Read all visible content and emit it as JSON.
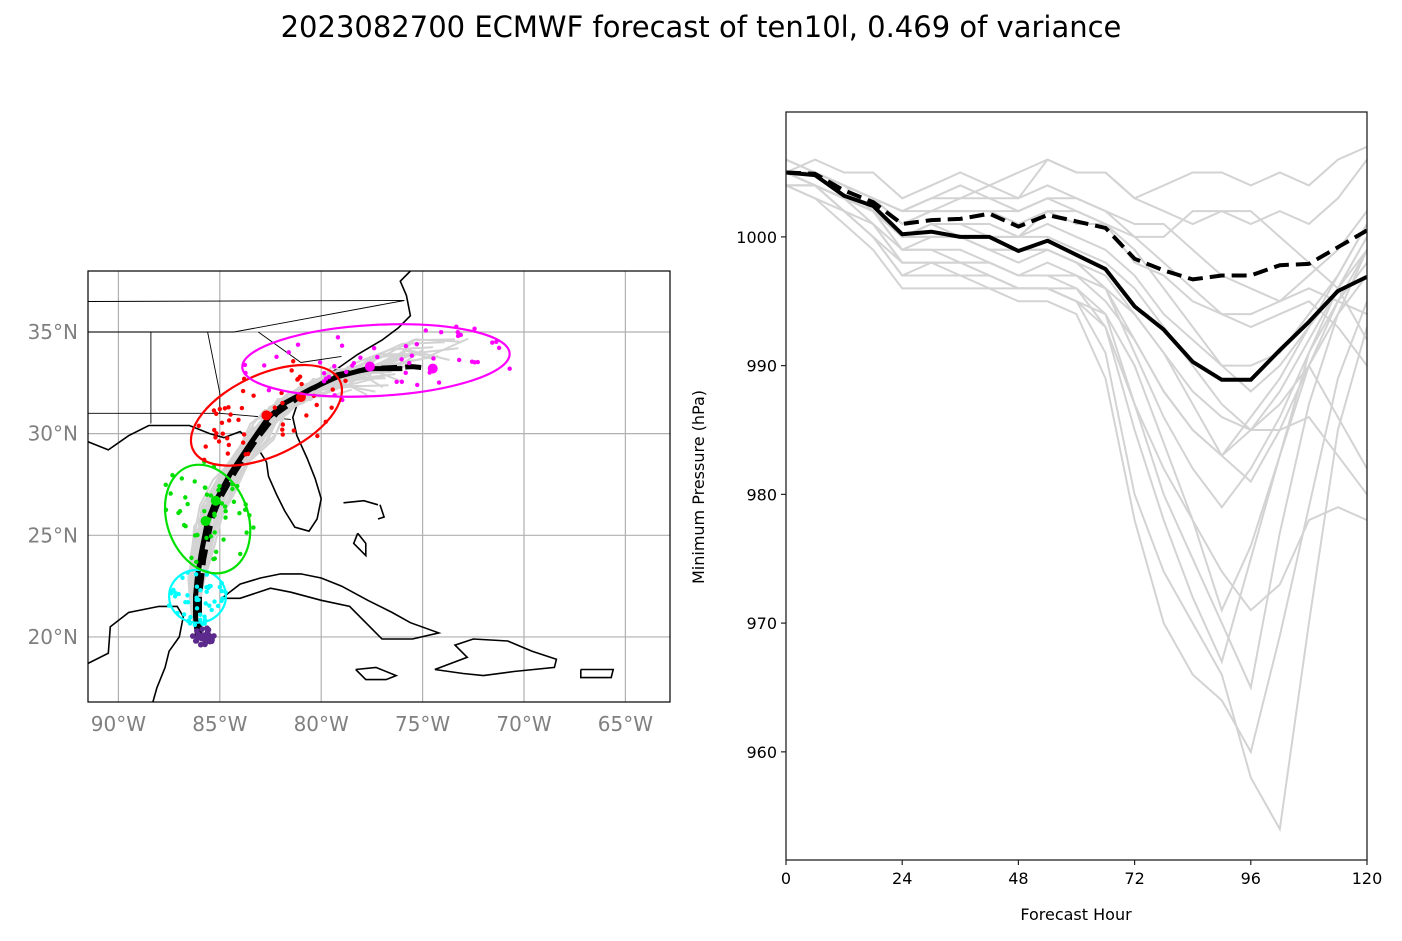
{
  "title": "2023082700 ECMWF forecast of ten10l, 0.469 of variance",
  "chart_data": [
    {
      "type": "scatter",
      "name": "track-map",
      "projection": "PlateCarree",
      "xlim": [
        -91.5,
        -62.8
      ],
      "ylim": [
        16.8,
        38.0
      ],
      "grid": true,
      "x_ticks": [
        -90,
        -85,
        -80,
        -75,
        -70,
        -65
      ],
      "x_tick_labels": [
        "90°W",
        "85°W",
        "80°W",
        "75°W",
        "70°W",
        "65°W"
      ],
      "y_ticks": [
        20,
        25,
        30,
        35
      ],
      "y_tick_labels": [
        "20°N",
        "25°N",
        "30°N",
        "35°N"
      ],
      "colors": {
        "ensemble_track": "#d3d3d3",
        "mean_track": "#000000",
        "t0": "#5b2a8c",
        "t24": "#00ffff",
        "t48": "#00e000",
        "t72": "#ff0000",
        "t96": "#ff00ff",
        "coast": "#000000",
        "grid": "#b0b0b0"
      },
      "mean_track_solid": [
        [
          -86.1,
          20.0
        ],
        [
          -86.2,
          21.0
        ],
        [
          -86.2,
          22.0
        ],
        [
          -86.1,
          23.0
        ],
        [
          -85.9,
          24.2
        ],
        [
          -85.6,
          25.7
        ],
        [
          -85.2,
          26.7
        ],
        [
          -84.5,
          28.0
        ],
        [
          -83.5,
          29.5
        ],
        [
          -82.6,
          30.8
        ],
        [
          -81.8,
          31.5
        ],
        [
          -80.5,
          32.2
        ],
        [
          -79.2,
          32.8
        ],
        [
          -77.7,
          33.2
        ],
        [
          -76.0,
          33.2
        ]
      ],
      "mean_track_dashed": [
        [
          -86.0,
          20.0
        ],
        [
          -86.0,
          22.0
        ],
        [
          -85.8,
          23.8
        ],
        [
          -85.4,
          25.8
        ],
        [
          -85.0,
          26.8
        ],
        [
          -84.2,
          28.2
        ],
        [
          -83.2,
          29.7
        ],
        [
          -82.2,
          31.0
        ],
        [
          -80.8,
          32.0
        ],
        [
          -79.2,
          32.9
        ],
        [
          -77.5,
          33.2
        ],
        [
          -75.5,
          33.3
        ],
        [
          -74.5,
          33.2
        ]
      ],
      "ellipses": [
        {
          "hour": 24,
          "center": [
            -86.1,
            22.0
          ],
          "width_deg": 2.8,
          "height_deg": 2.6,
          "angle": 0,
          "color_key": "t24"
        },
        {
          "hour": 48,
          "center": [
            -85.6,
            25.8
          ],
          "width_deg": 4.0,
          "height_deg": 5.5,
          "angle": -20,
          "color_key": "t48"
        },
        {
          "hour": 72,
          "center": [
            -82.7,
            30.9
          ],
          "width_deg": 8.0,
          "height_deg": 4.0,
          "angle": -25,
          "color_key": "t72"
        },
        {
          "hour": 96,
          "center": [
            -77.3,
            33.6
          ],
          "width_deg": 13.2,
          "height_deg": 3.5,
          "angle": -3,
          "color_key": "t96"
        }
      ],
      "mean_points": [
        {
          "hour": 48,
          "lonlat": [
            -85.7,
            25.7
          ],
          "color_key": "t48"
        },
        {
          "hour": 48,
          "lonlat": [
            -85.2,
            26.7
          ],
          "color_key": "t48"
        },
        {
          "hour": 72,
          "lonlat": [
            -82.7,
            30.9
          ],
          "color_key": "t72"
        },
        {
          "hour": 72,
          "lonlat": [
            -81.0,
            31.8
          ],
          "color_key": "t72"
        },
        {
          "hour": 96,
          "lonlat": [
            -77.6,
            33.3
          ],
          "color_key": "t96"
        },
        {
          "hour": 96,
          "lonlat": [
            -74.5,
            33.2
          ],
          "color_key": "t96"
        }
      ]
    },
    {
      "type": "line",
      "name": "pressure-plot",
      "title": "",
      "xlabel": "Forecast Hour",
      "ylabel": "Minimum Pressure (hPa)",
      "xlim": [
        0,
        120
      ],
      "ylim": [
        951.6,
        1009.7
      ],
      "x_ticks": [
        0,
        24,
        48,
        72,
        96,
        120
      ],
      "y_ticks": [
        960,
        970,
        980,
        990,
        1000
      ],
      "grid": false,
      "x": [
        0,
        6,
        12,
        18,
        24,
        30,
        36,
        42,
        48,
        54,
        60,
        66,
        72,
        78,
        84,
        90,
        96,
        102,
        108,
        114,
        120
      ],
      "series": [
        {
          "name": "ensemble-mean",
          "style": "solid",
          "color": "#000000",
          "values": [
            1005.0,
            1004.8,
            1003.2,
            1002.4,
            1000.2,
            1000.4,
            1000.0,
            1000.0,
            998.9,
            999.7,
            998.6,
            997.5,
            994.6,
            992.8,
            990.3,
            988.9,
            988.9,
            991.2,
            993.4,
            995.8,
            996.9
          ]
        },
        {
          "name": "deterministic",
          "style": "dashed",
          "color": "#000000",
          "values": [
            1005.0,
            1004.9,
            1003.6,
            1002.7,
            1001.0,
            1001.3,
            1001.4,
            1001.8,
            1000.8,
            1001.7,
            1001.2,
            1000.7,
            998.3,
            997.4,
            996.7,
            997.0,
            997.0,
            997.8,
            997.9,
            999.2,
            1000.5
          ]
        },
        {
          "name": "member-01",
          "style": "solid",
          "color": "#d3d3d3",
          "values": [
            1006,
            1005,
            1004,
            1003,
            1001,
            1002,
            1003,
            1004,
            1003,
            1006,
            1005,
            1005,
            1003,
            1002,
            1001,
            1002,
            1001,
            1002,
            1001,
            1003,
            1006
          ]
        },
        {
          "name": "member-02",
          "style": "solid",
          "color": "#d3d3d3",
          "values": [
            1005,
            1006,
            1005,
            1005,
            1003,
            1004,
            1005,
            1004,
            1005,
            1006,
            1005,
            1005,
            1003,
            1004,
            1005,
            1005,
            1004,
            1005,
            1004,
            1006,
            1007
          ]
        },
        {
          "name": "member-03",
          "style": "solid",
          "color": "#d3d3d3",
          "values": [
            1005,
            1005,
            1004,
            1003,
            1002,
            1003,
            1003,
            1003,
            1002,
            1003,
            1003,
            1002,
            1001,
            1001,
            999,
            997,
            996,
            995,
            996,
            995,
            994
          ]
        },
        {
          "name": "member-04",
          "style": "solid",
          "color": "#d3d3d3",
          "values": [
            1005,
            1004,
            1003,
            1002,
            1000,
            1001,
            1001,
            1001,
            1000,
            1002,
            1001,
            1001,
            1000,
            1000,
            1002,
            1002,
            1002,
            1000,
            998,
            996,
            992
          ]
        },
        {
          "name": "member-05",
          "style": "solid",
          "color": "#d3d3d3",
          "values": [
            1004,
            1004,
            1003,
            1002,
            999,
            999,
            999,
            998,
            997,
            998,
            997,
            996,
            994,
            991,
            987,
            983,
            981,
            985,
            990,
            994,
            997
          ]
        },
        {
          "name": "member-06",
          "style": "solid",
          "color": "#d3d3d3",
          "values": [
            1005,
            1004,
            1002,
            1001,
            998,
            998,
            998,
            997,
            996,
            996,
            995,
            994,
            990,
            984,
            978,
            971,
            976,
            983,
            990,
            995,
            999
          ]
        },
        {
          "name": "member-07",
          "style": "solid",
          "color": "#d3d3d3",
          "values": [
            1004,
            1004,
            1002,
            1000,
            997,
            997,
            997,
            996,
            996,
            996,
            995,
            993,
            985,
            978,
            972,
            967,
            975,
            983,
            991,
            996,
            1000
          ]
        },
        {
          "name": "member-08",
          "style": "solid",
          "color": "#d3d3d3",
          "values": [
            1004,
            1003,
            1001,
            999,
            996,
            996,
            996,
            996,
            995,
            995,
            994,
            989,
            978,
            970,
            966,
            964,
            960,
            969,
            979,
            989,
            995
          ]
        },
        {
          "name": "member-09",
          "style": "solid",
          "color": "#d3d3d3",
          "values": [
            1005,
            1004,
            1002,
            1000,
            998,
            998,
            997,
            997,
            996,
            996,
            995,
            991,
            980,
            974,
            970,
            966,
            958,
            954,
            970,
            985,
            993
          ]
        },
        {
          "name": "member-10",
          "style": "solid",
          "color": "#d3d3d3",
          "values": [
            1005,
            1004,
            1003,
            1001,
            999,
            999,
            998,
            998,
            997,
            997,
            996,
            993,
            987,
            982,
            978,
            974,
            971,
            973,
            978,
            979,
            978
          ]
        },
        {
          "name": "member-11",
          "style": "solid",
          "color": "#d3d3d3",
          "values": [
            1005,
            1005,
            1003,
            1002,
            1000,
            1000,
            1000,
            999,
            999,
            999,
            998,
            997,
            994,
            991,
            988,
            986,
            985,
            985,
            986,
            983,
            980
          ]
        },
        {
          "name": "member-12",
          "style": "solid",
          "color": "#d3d3d3",
          "values": [
            1005,
            1004,
            1003,
            1002,
            1000,
            1001,
            1001,
            1000,
            1000,
            1000,
            999,
            998,
            996,
            993,
            990,
            987,
            985,
            987,
            990,
            986,
            982
          ]
        },
        {
          "name": "member-13",
          "style": "solid",
          "color": "#d3d3d3",
          "values": [
            1006,
            1005,
            1004,
            1003,
            1002,
            1003,
            1004,
            1003,
            1003,
            1004,
            1003,
            1002,
            1000,
            998,
            996,
            994,
            993,
            994,
            995,
            993,
            990
          ]
        },
        {
          "name": "member-14",
          "style": "solid",
          "color": "#d3d3d3",
          "values": [
            1005,
            1005,
            1004,
            1003,
            1001,
            1002,
            1002,
            1002,
            1002,
            1003,
            1002,
            1001,
            999,
            996,
            993,
            990,
            988,
            990,
            993,
            997,
            1001
          ]
        },
        {
          "name": "member-15",
          "style": "solid",
          "color": "#d3d3d3",
          "values": [
            1004,
            1004,
            1003,
            1001,
            998,
            998,
            998,
            998,
            997,
            997,
            997,
            995,
            992,
            988,
            985,
            983,
            985,
            988,
            992,
            996,
            1000
          ]
        },
        {
          "name": "member-16",
          "style": "solid",
          "color": "#d3d3d3",
          "values": [
            1005,
            1004,
            1003,
            1002,
            999,
            1000,
            1000,
            999,
            999,
            999,
            998,
            996,
            991,
            986,
            982,
            979,
            982,
            986,
            991,
            995,
            998
          ]
        },
        {
          "name": "member-17",
          "style": "solid",
          "color": "#d3d3d3",
          "values": [
            1005,
            1005,
            1004,
            1003,
            1002,
            1002,
            1002,
            1002,
            1001,
            1002,
            1002,
            1001,
            998,
            997,
            995,
            994,
            994,
            995,
            997,
            999,
            1002
          ]
        },
        {
          "name": "member-18",
          "style": "solid",
          "color": "#d3d3d3",
          "values": [
            1005,
            1005,
            1004,
            1002,
            1000,
            1001,
            1000,
            1000,
            1000,
            1001,
            1000,
            999,
            997,
            994,
            992,
            990,
            990,
            991,
            994,
            997,
            1001
          ]
        },
        {
          "name": "member-19",
          "style": "solid",
          "color": "#d3d3d3",
          "values": [
            1004,
            1003,
            1002,
            1000,
            997,
            998,
            998,
            997,
            996,
            996,
            996,
            994,
            987,
            980,
            975,
            970,
            965,
            977,
            987,
            994,
            999
          ]
        },
        {
          "name": "member-20",
          "style": "solid",
          "color": "#d3d3d3",
          "values": [
            1005,
            1004,
            1003,
            1002,
            1000,
            1000,
            1000,
            999,
            998,
            999,
            998,
            996,
            992,
            988,
            985,
            983,
            986,
            989,
            993,
            996,
            999
          ]
        }
      ]
    }
  ]
}
